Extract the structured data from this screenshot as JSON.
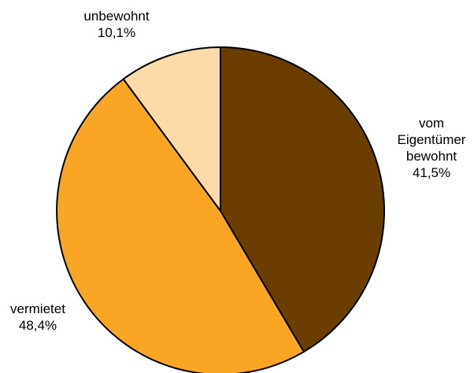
{
  "chart_data": {
    "type": "pie",
    "start_angle_deg": 0,
    "direction": "clockwise",
    "slices": [
      {
        "name": "vom Eigentümer bewohnt",
        "label_lines": [
          "vom",
          "Eigentümer",
          "bewohnt"
        ],
        "value": 41.5,
        "value_label": "41,5%",
        "color": "#6B3E00"
      },
      {
        "name": "vermietet",
        "label_lines": [
          "vermietet"
        ],
        "value": 48.4,
        "value_label": "48,4%",
        "color": "#FBA524"
      },
      {
        "name": "unbewohnt",
        "label_lines": [
          "unbewohnt"
        ],
        "value": 10.1,
        "value_label": "10,1%",
        "color": "#FDDBA9"
      }
    ],
    "label_placement": "outside",
    "stroke_color": "#000000"
  }
}
